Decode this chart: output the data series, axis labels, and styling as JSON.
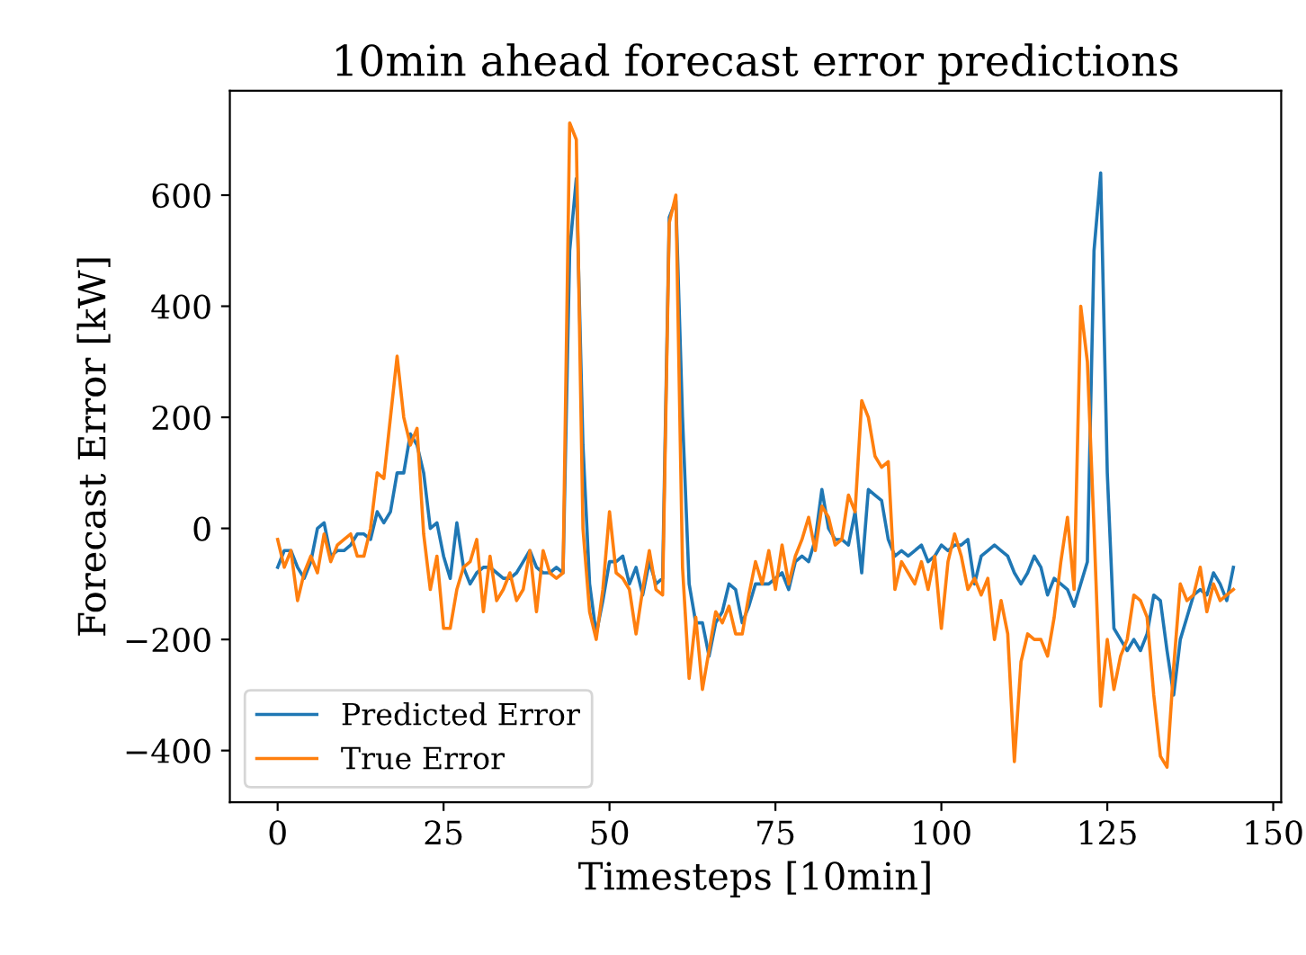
{
  "chart_data": {
    "type": "line",
    "title": "10min ahead forecast error predictions",
    "xlabel": "Timesteps [10min]",
    "ylabel": "Forecast Error [kW]",
    "x": [
      0,
      1,
      2,
      3,
      4,
      5,
      6,
      7,
      8,
      9,
      10,
      11,
      12,
      13,
      14,
      15,
      16,
      17,
      18,
      19,
      20,
      21,
      22,
      23,
      24,
      25,
      26,
      27,
      28,
      29,
      30,
      31,
      32,
      33,
      34,
      35,
      36,
      37,
      38,
      39,
      40,
      41,
      42,
      43,
      44,
      45,
      46,
      47,
      48,
      49,
      50,
      51,
      52,
      53,
      54,
      55,
      56,
      57,
      58,
      59,
      60,
      61,
      62,
      63,
      64,
      65,
      66,
      67,
      68,
      69,
      70,
      71,
      72,
      73,
      74,
      75,
      76,
      77,
      78,
      79,
      80,
      81,
      82,
      83,
      84,
      85,
      86,
      87,
      88,
      89,
      90,
      91,
      92,
      93,
      94,
      95,
      96,
      97,
      98,
      99,
      100,
      101,
      102,
      103,
      104,
      105,
      106,
      107,
      108,
      109,
      110,
      111,
      112,
      113,
      114,
      115,
      116,
      117,
      118,
      119,
      120,
      121,
      122,
      123,
      124,
      125,
      126,
      127,
      128,
      129,
      130,
      131,
      132,
      133,
      134,
      135,
      136,
      137,
      138,
      139,
      140,
      141,
      142,
      143,
      144
    ],
    "xlim": [
      -7.2,
      151.2
    ],
    "xticks": [
      0,
      25,
      50,
      75,
      100,
      125,
      150
    ],
    "ylim": [
      -493,
      788
    ],
    "yticks": [
      {
        "value": -400,
        "label": "−400"
      },
      {
        "value": -200,
        "label": "−200"
      },
      0,
      200,
      400,
      600
    ],
    "grid": false,
    "legend": "bottom left",
    "marker": "none",
    "line_style": "solid",
    "series": [
      {
        "name": "Predicted Error",
        "color": "#1f77b4",
        "values": [
          -70,
          -40,
          -40,
          -70,
          -90,
          -60,
          0,
          10,
          -50,
          -40,
          -40,
          -30,
          -10,
          -10,
          -20,
          30,
          10,
          30,
          100,
          100,
          170,
          150,
          100,
          0,
          10,
          -50,
          -90,
          10,
          -70,
          -100,
          -80,
          -70,
          -70,
          -80,
          -90,
          -90,
          -80,
          -60,
          -40,
          -70,
          -80,
          -80,
          -70,
          -80,
          500,
          630,
          150,
          -100,
          -190,
          -130,
          -60,
          -60,
          -50,
          -100,
          -70,
          -120,
          -60,
          -100,
          -90,
          560,
          590,
          200,
          -100,
          -170,
          -170,
          -230,
          -170,
          -150,
          -100,
          -110,
          -170,
          -140,
          -100,
          -100,
          -100,
          -90,
          -80,
          -110,
          -60,
          -50,
          -60,
          -20,
          70,
          0,
          -20,
          -20,
          -30,
          30,
          -80,
          70,
          60,
          50,
          -20,
          -50,
          -40,
          -50,
          -40,
          -30,
          -60,
          -50,
          -30,
          -40,
          -30,
          -30,
          -20,
          -100,
          -50,
          -40,
          -30,
          -40,
          -50,
          -80,
          -100,
          -80,
          -50,
          -70,
          -120,
          -90,
          -100,
          -110,
          -140,
          -100,
          -60,
          500,
          640,
          100,
          -180,
          -200,
          -220,
          -200,
          -220,
          -190,
          -120,
          -130,
          -220,
          -300,
          -200,
          -160,
          -120,
          -110,
          -120,
          -80,
          -100,
          -130,
          -70
        ]
      },
      {
        "name": "True Error",
        "color": "#ff7f0e",
        "values": [
          -20,
          -70,
          -40,
          -130,
          -80,
          -50,
          -80,
          -10,
          -60,
          -30,
          -20,
          -10,
          -50,
          -50,
          0,
          100,
          90,
          200,
          310,
          200,
          150,
          180,
          -10,
          -110,
          -50,
          -180,
          -180,
          -110,
          -70,
          -60,
          -20,
          -150,
          -50,
          -130,
          -110,
          -80,
          -130,
          -110,
          -40,
          -150,
          -40,
          -80,
          -90,
          -80,
          730,
          700,
          0,
          -150,
          -200,
          -110,
          30,
          -80,
          -90,
          -110,
          -190,
          -110,
          -40,
          -110,
          -120,
          550,
          600,
          -70,
          -270,
          -160,
          -290,
          -220,
          -150,
          -170,
          -140,
          -190,
          -190,
          -120,
          -60,
          -100,
          -40,
          -110,
          -30,
          -100,
          -50,
          -20,
          20,
          -40,
          40,
          20,
          -30,
          -20,
          60,
          30,
          230,
          200,
          130,
          110,
          120,
          -110,
          -60,
          -80,
          -100,
          -60,
          -110,
          -50,
          -180,
          -60,
          -10,
          -50,
          -110,
          -90,
          -120,
          -90,
          -200,
          -130,
          -190,
          -420,
          -240,
          -190,
          -200,
          -200,
          -230,
          -160,
          -60,
          20,
          -110,
          400,
          300,
          0,
          -320,
          -200,
          -290,
          -230,
          -200,
          -120,
          -130,
          -160,
          -300,
          -410,
          -430,
          -250,
          -100,
          -130,
          -120,
          -70,
          -150,
          -100,
          -130,
          -120,
          -110
        ]
      }
    ]
  }
}
